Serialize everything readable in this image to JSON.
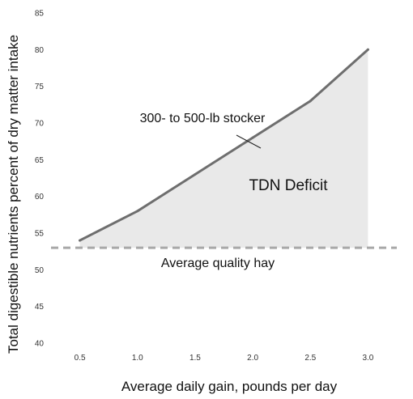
{
  "chart_data": {
    "type": "area",
    "xlabel": "Average daily gain, pounds per day",
    "ylabel": "Total digestible nutrients percent of dry matter intake",
    "xlim": [
      0.25,
      3.25
    ],
    "ylim": [
      40,
      85
    ],
    "x_ticks": [
      "0.5",
      "1.0",
      "1.5",
      "2.0",
      "2.5",
      "3.0"
    ],
    "y_ticks": [
      "40",
      "45",
      "50",
      "55",
      "60",
      "65",
      "70",
      "75",
      "80",
      "85"
    ],
    "grid": false,
    "series": [
      {
        "name": "300- to 500-lb stocker",
        "x": [
          0.5,
          1.0,
          1.5,
          2.0,
          2.5,
          3.0
        ],
        "y": [
          54,
          58,
          63,
          68,
          73,
          80
        ],
        "color": "#6e6e6e"
      }
    ],
    "reference_line": {
      "name": "Average quality hay",
      "y": 53,
      "style": "dashed",
      "color": "#a8a8a8"
    },
    "shaded_region": {
      "label": "TDN Deficit",
      "between": "series and reference line",
      "color": "#e9e9e9"
    }
  }
}
